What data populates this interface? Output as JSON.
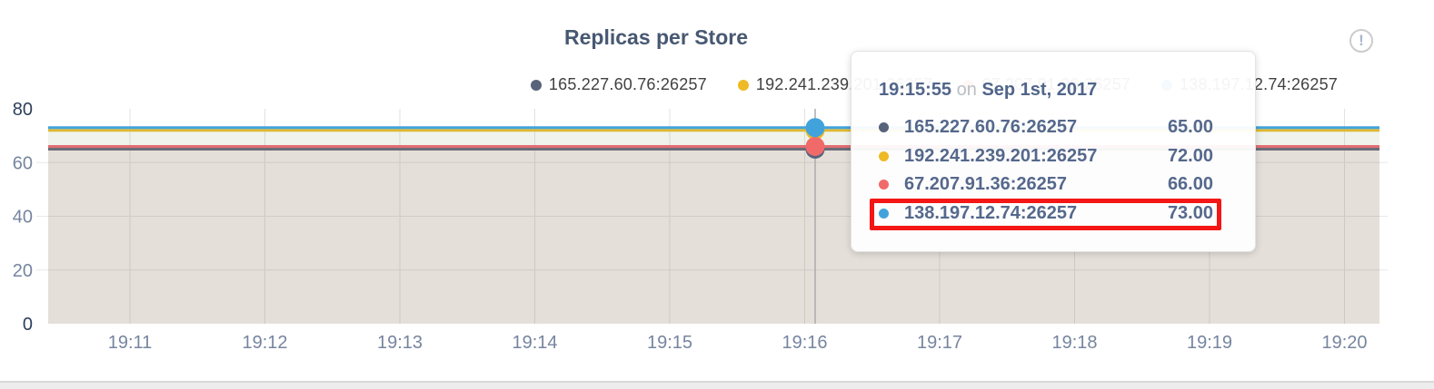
{
  "page": {
    "title": "Replicas per Store"
  },
  "alert_icon": {
    "glyph": "!"
  },
  "legend": {
    "items": [
      {
        "label": "165.227.60.76:26257",
        "color": "#57627b"
      },
      {
        "label": "192.241.239.201:26257",
        "color": "#eeba25"
      },
      {
        "label": "67.207.91.36:26257",
        "color": "#f16a6a"
      },
      {
        "label": "138.197.12.74:26257",
        "color": "#42a3dc"
      }
    ]
  },
  "tooltip": {
    "time": "19:15:55",
    "conjunction": "on",
    "date": "Sep 1st, 2017",
    "rows": [
      {
        "label": "165.227.60.76:26257",
        "value": "65.00",
        "color": "#57627b"
      },
      {
        "label": "192.241.239.201:26257",
        "value": "72.00",
        "color": "#eeba25"
      },
      {
        "label": "67.207.91.36:26257",
        "value": "66.00",
        "color": "#f16a6a"
      },
      {
        "label": "138.197.12.74:26257",
        "value": "73.00",
        "color": "#42a3dc"
      }
    ],
    "highlighted_row": "138.197.12.74:26257"
  },
  "annotation": {
    "type": "highlight-box",
    "color": "#f51616",
    "target_row": "138.197.12.74:26257"
  },
  "chart_data": {
    "type": "area",
    "title": "Replicas per Store",
    "xlabel": "",
    "ylabel": "",
    "x_ticks": [
      "19:11",
      "19:12",
      "19:13",
      "19:14",
      "19:15",
      "19:16",
      "19:17",
      "19:18",
      "19:19",
      "19:20"
    ],
    "yticks": [
      0,
      20,
      40,
      60,
      80
    ],
    "ylim": [
      0,
      80
    ],
    "grid": true,
    "legend_position": "top-right",
    "fill_opacity": 0.08,
    "series": [
      {
        "name": "165.227.60.76:26257",
        "color": "#57627b",
        "values": [
          65,
          65,
          65,
          65,
          65,
          65,
          65,
          65,
          65,
          65
        ]
      },
      {
        "name": "192.241.239.201:26257",
        "color": "#eeba25",
        "values": [
          72,
          72,
          72,
          72,
          72,
          72,
          72,
          72,
          72,
          72
        ]
      },
      {
        "name": "67.207.91.36:26257",
        "color": "#f16a6a",
        "values": [
          66,
          66,
          66,
          66,
          66,
          66,
          66,
          66,
          66,
          66
        ]
      },
      {
        "name": "138.197.12.74:26257",
        "color": "#42a3dc",
        "values": [
          73,
          73,
          73,
          73,
          73,
          73,
          73,
          73,
          73,
          73
        ]
      }
    ],
    "hover_point": {
      "time": "19:15:55",
      "date": "Sep 1st, 2017",
      "values": {
        "165.227.60.76:26257": 65,
        "192.241.239.201:26257": 72,
        "67.207.91.36:26257": 66,
        "138.197.12.74:26257": 73
      }
    }
  }
}
